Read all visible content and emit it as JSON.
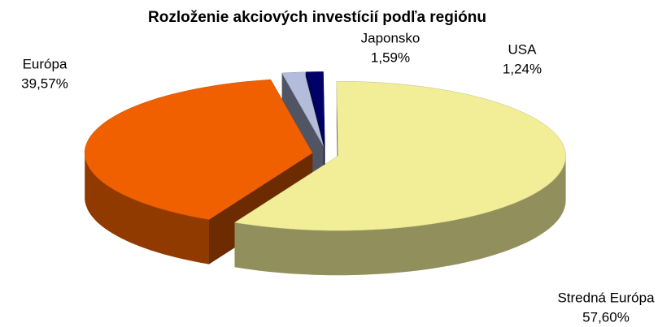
{
  "chart_data": {
    "type": "pie",
    "title": "Rozloženie akciových investícií podľa regiónu",
    "categories": [
      "Európa",
      "Japonsko",
      "USA",
      "Stredná Európa"
    ],
    "values": [
      39.57,
      1.59,
      1.24,
      57.6
    ],
    "value_labels": [
      "39,57%",
      "1,59%",
      "1,24%",
      "57,60%"
    ],
    "colors": [
      "#f06000",
      "#b4bcdc",
      "#000066",
      "#f2ee98"
    ]
  }
}
